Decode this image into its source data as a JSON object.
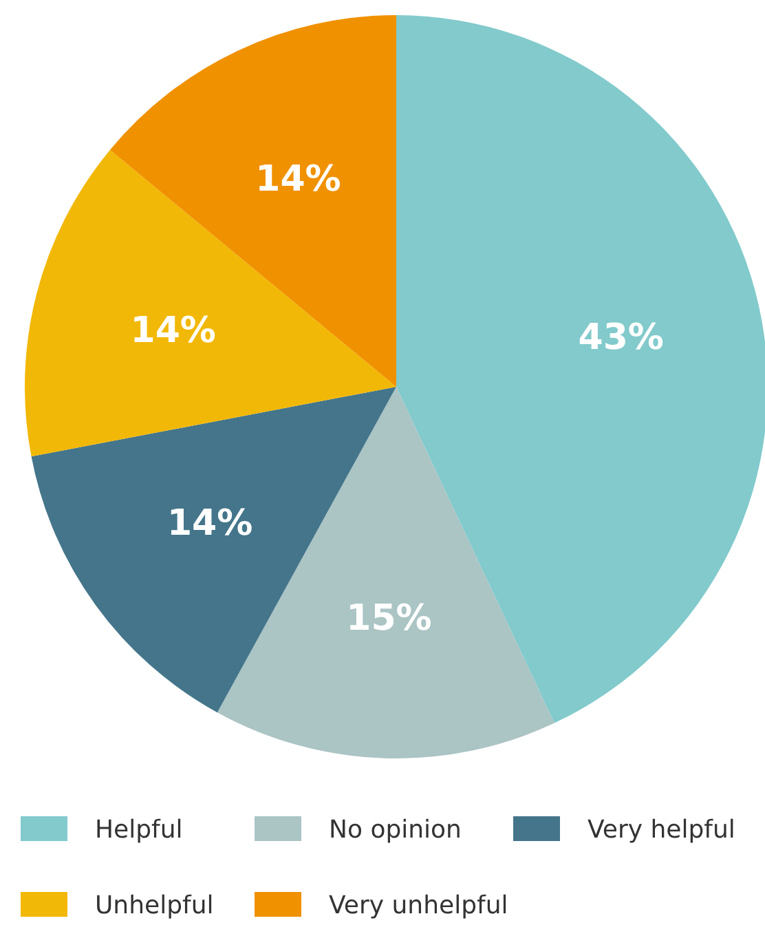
{
  "chart_data": {
    "type": "pie",
    "categories": [
      "Helpful",
      "No opinion",
      "Very helpful",
      "Unhelpful",
      "Very unhelpful"
    ],
    "values": [
      43,
      15,
      14,
      14,
      14
    ],
    "colors": [
      "#82cacc",
      "#abc4c4",
      "#44758b",
      "#f2b807",
      "#f09100"
    ],
    "value_labels": [
      "43%",
      "15%",
      "14%",
      "14%",
      "14%"
    ],
    "legend": "bottom"
  }
}
